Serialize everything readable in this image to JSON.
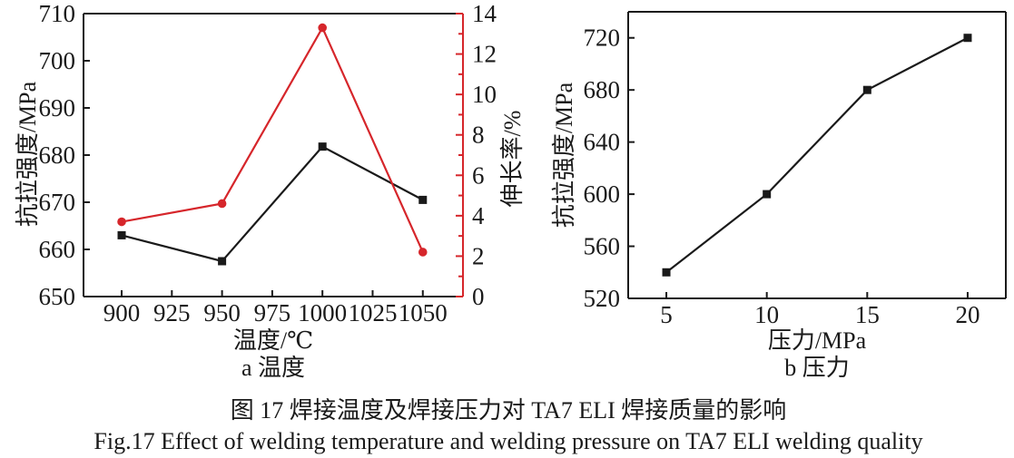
{
  "figure": {
    "caption_zh": "图 17  焊接温度及焊接压力对 TA7 ELI 焊接质量的影响",
    "caption_en": "Fig.17 Effect of welding temperature and welding pressure on TA7 ELI welding quality"
  },
  "colors": {
    "axis_black": "#1a1a1a",
    "series_red": "#d6262b"
  },
  "chart_data": [
    {
      "id": "a",
      "type": "line",
      "subcaption": "a 温度",
      "xlabel": "温度/℃",
      "x": [
        900,
        950,
        1000,
        1050
      ],
      "xticks": [
        900,
        925,
        950,
        975,
        1000,
        1025,
        1050
      ],
      "xlim": [
        881,
        1070
      ],
      "grid": false,
      "legend": "none",
      "left_axis": {
        "label": "抗拉强度/MPa",
        "lim": [
          650,
          710
        ],
        "ticks": [
          650,
          660,
          670,
          680,
          690,
          700,
          710
        ],
        "color": "#1a1a1a"
      },
      "right_axis": {
        "label": "伸长率/%",
        "lim": [
          0,
          14
        ],
        "ticks": [
          0,
          2,
          4,
          6,
          8,
          10,
          12,
          14
        ],
        "minor_step": 1,
        "color": "#d6262b"
      },
      "series": [
        {
          "name": "抗拉强度",
          "axis": "left",
          "marker": "square",
          "color": "#1a1a1a",
          "values": [
            663,
            657.5,
            681.8,
            670.5
          ]
        },
        {
          "name": "伸长率",
          "axis": "right",
          "marker": "circle",
          "color": "#d6262b",
          "values": [
            3.7,
            4.6,
            13.3,
            2.2
          ]
        }
      ]
    },
    {
      "id": "b",
      "type": "line",
      "subcaption": "b 压力",
      "xlabel": "压力/MPa",
      "x": [
        5,
        10,
        15,
        20
      ],
      "xticks": [
        5,
        10,
        15,
        20
      ],
      "xlim": [
        3.1,
        21.9
      ],
      "grid": false,
      "legend": "none",
      "left_axis": {
        "label": "抗拉强度/MPa",
        "lim": [
          520,
          740
        ],
        "ticks": [
          520,
          560,
          600,
          640,
          680,
          720
        ],
        "color": "#1a1a1a"
      },
      "series": [
        {
          "name": "抗拉强度",
          "axis": "left",
          "marker": "square",
          "color": "#1a1a1a",
          "values": [
            540,
            600,
            680,
            720
          ]
        }
      ]
    }
  ]
}
